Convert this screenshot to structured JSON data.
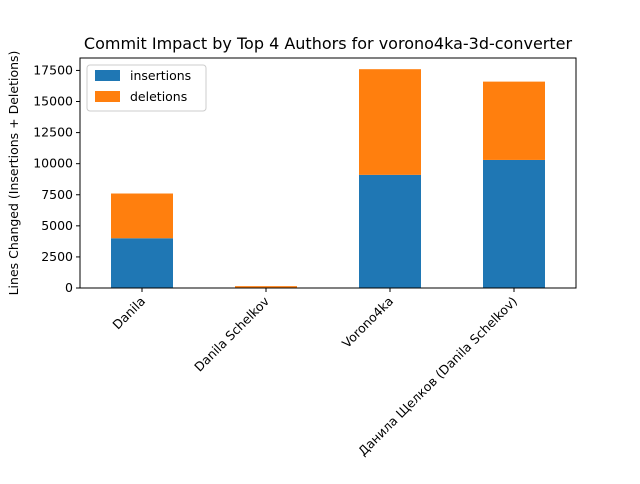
{
  "chart_data": {
    "type": "bar",
    "stacked": true,
    "title": "Commit Impact by Top 4 Authors for vorono4ka-3d-converter",
    "xlabel": "",
    "ylabel": "Lines Changed (Insertions + Deletions)",
    "categories": [
      "Danila",
      "Danila Schelkov",
      "Vorono4ka",
      "Данила Щелков (Danila Schelkov)"
    ],
    "series": [
      {
        "name": "insertions",
        "color": "#1f77b4",
        "values": [
          4000,
          30,
          9100,
          10300
        ]
      },
      {
        "name": "deletions",
        "color": "#ff7f0e",
        "values": [
          3600,
          120,
          8500,
          6300
        ]
      }
    ],
    "yticks": [
      0,
      2500,
      5000,
      7500,
      10000,
      12500,
      15000,
      17500
    ],
    "ytick_labels": [
      "0",
      "2500",
      "5000",
      "7500",
      "10000",
      "12500",
      "15000",
      "17500"
    ],
    "ylim": [
      0,
      18500
    ],
    "grid": false,
    "legend_position": "top-left"
  }
}
